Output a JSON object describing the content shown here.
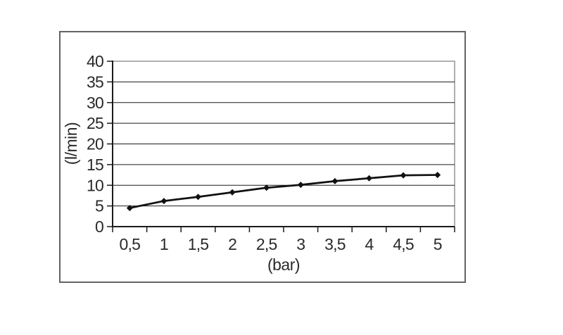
{
  "page": {
    "background": "#ffffff"
  },
  "frame": {
    "border_color": "#636363"
  },
  "chart_data": {
    "type": "line",
    "title": "",
    "categories": [
      "0,5",
      "1",
      "1,5",
      "2",
      "2,5",
      "3",
      "3,5",
      "4",
      "4,5",
      "5"
    ],
    "x_numeric": [
      0.5,
      1,
      1.5,
      2,
      2.5,
      3,
      3.5,
      4,
      4.5,
      5
    ],
    "values": [
      4.5,
      6.2,
      7.2,
      8.3,
      9.4,
      10.1,
      11.0,
      11.7,
      12.4,
      12.5
    ],
    "xlabel": "(bar)",
    "ylabel": "(l/min)",
    "ylim": [
      0,
      40
    ],
    "yticks": [
      0,
      5,
      10,
      15,
      20,
      25,
      30,
      35,
      40
    ],
    "grid": "horizontal",
    "legend": "none",
    "marker": "diamond",
    "colors": {
      "series": "#111111",
      "gridline": "#1b1b1b",
      "axis": "#1b1b1b",
      "plot_border": "#b0b0b0",
      "text": "#2a2a2a"
    }
  }
}
